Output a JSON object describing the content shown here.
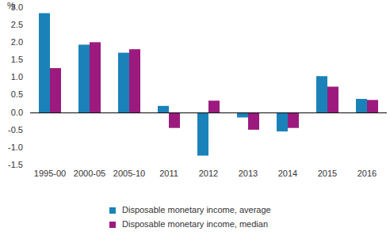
{
  "chart_data": {
    "type": "bar",
    "ylabel": "%",
    "categories": [
      "1995-00",
      "2000-05",
      "2005-10",
      "2011",
      "2012",
      "2013",
      "2014",
      "2015",
      "2016"
    ],
    "series": [
      {
        "name": "Disposable monetary income, average",
        "color": "#1a82b8",
        "values": [
          2.85,
          1.95,
          1.72,
          0.2,
          -1.22,
          -0.13,
          -0.53,
          1.05,
          0.4
        ]
      },
      {
        "name": "Disposable monetary income, median",
        "color": "#9c1a7e",
        "values": [
          1.28,
          2.02,
          1.82,
          -0.43,
          0.35,
          -0.48,
          -0.43,
          0.75,
          0.37
        ]
      }
    ],
    "ylim": [
      -1.5,
      3
    ],
    "yticks": [
      -1.5,
      {
        "value": -1,
        "label": "-1.0"
      },
      -0.5,
      {
        "value": 0,
        "label": "0.0"
      },
      0.5,
      {
        "value": 1,
        "label": "1.0"
      },
      1.5,
      {
        "value": 2,
        "label": "2.0"
      },
      2.5,
      {
        "value": 3,
        "label": "3.0"
      }
    ],
    "grid": false,
    "legend": "bottom"
  }
}
